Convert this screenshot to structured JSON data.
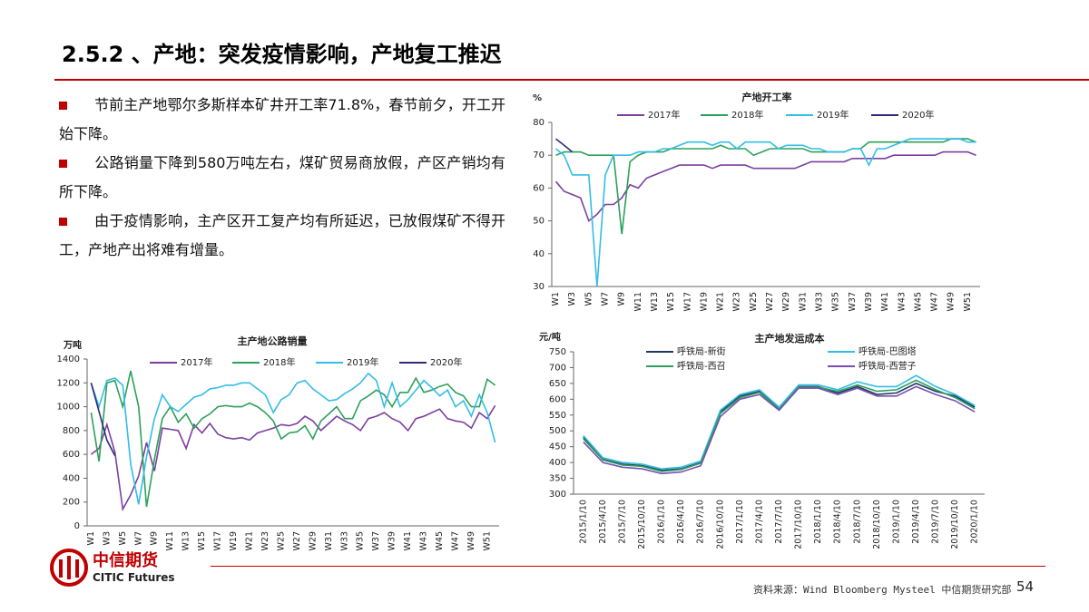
{
  "header": {
    "title": "2.5.2 、产地：突发疫情影响，产地复工推迟"
  },
  "bullets": [
    "节前主产地鄂尔多斯样本矿井开工率71.8%，春节前夕，开工开始下降。",
    "公路销量下降到580万吨左右，煤矿贸易商放假，产区产销均有所下降。",
    "由于疫情影响，主产区开工复产均有所延迟，已放假煤矿不得开工，产地产出将难有增量。"
  ],
  "logo": {
    "name": "中信期货",
    "name_en": "CITIC Futures"
  },
  "footer": {
    "source": "资料来源：Wind Bloomberg Mysteel 中信期货研究部",
    "page": "54"
  },
  "chart_data": [
    {
      "type": "line",
      "title": "产地开工率",
      "y_label": "%",
      "legend": "top",
      "ylim": [
        30,
        80
      ],
      "yticks": [
        30,
        40,
        50,
        60,
        70,
        80
      ],
      "categories": [
        "W1",
        null,
        "W3",
        null,
        "W5",
        null,
        "W7",
        null,
        "W9",
        null,
        "W11",
        null,
        "W13",
        null,
        "W15",
        null,
        "W17",
        null,
        "W19",
        null,
        "W21",
        null,
        "W23",
        null,
        "W25",
        null,
        "W27",
        null,
        "W29",
        null,
        "W31",
        null,
        "W33",
        null,
        "W35",
        null,
        "W37",
        null,
        "W39",
        null,
        "W41",
        null,
        "W43",
        null,
        "W45",
        null,
        "W47",
        null,
        "W49",
        null,
        "W51",
        null
      ],
      "series": [
        {
          "name": "2017年",
          "color": "#7b3fa0",
          "values": [
            62,
            59,
            58,
            57,
            50,
            52,
            55,
            55,
            57,
            61,
            60,
            63,
            64,
            65,
            66,
            67,
            67,
            67,
            67,
            66,
            67,
            67,
            67,
            67,
            66,
            66,
            66,
            66,
            66,
            66,
            67,
            68,
            68,
            68,
            68,
            68,
            69,
            69,
            69,
            69,
            69,
            70,
            70,
            70,
            70,
            70,
            70,
            71,
            71,
            71,
            71,
            70
          ]
        },
        {
          "name": "2018年",
          "color": "#2ca05a",
          "values": [
            70,
            71,
            71,
            71,
            70,
            70,
            70,
            70,
            46,
            68,
            70,
            71,
            71,
            71,
            72,
            72,
            72,
            72,
            72,
            72,
            73,
            72,
            72,
            72,
            70,
            71,
            72,
            72,
            72,
            72,
            72,
            71,
            71,
            71,
            71,
            71,
            72,
            72,
            74,
            74,
            74,
            74,
            74,
            74,
            74,
            74,
            74,
            74,
            75,
            75,
            75,
            74
          ]
        },
        {
          "name": "2019年",
          "color": "#33bde6",
          "values": [
            72,
            70,
            64,
            64,
            64,
            30,
            64,
            70,
            70,
            70,
            71,
            71,
            71,
            72,
            72,
            73,
            74,
            74,
            74,
            73,
            74,
            74,
            72,
            74,
            74,
            74,
            74,
            72,
            73,
            73,
            73,
            72,
            72,
            71,
            71,
            71,
            72,
            72,
            67,
            72,
            72,
            73,
            74,
            75,
            75,
            75,
            75,
            75,
            75,
            75,
            74,
            74
          ]
        },
        {
          "name": "2020年",
          "color": "#2e2a7a",
          "values": [
            75,
            73,
            71,
            null,
            null,
            null,
            null,
            null,
            null,
            null,
            null,
            null,
            null,
            null,
            null,
            null,
            null,
            null,
            null,
            null,
            null,
            null,
            null,
            null,
            null,
            null,
            null,
            null,
            null,
            null,
            null,
            null,
            null,
            null,
            null,
            null,
            null,
            null,
            null,
            null,
            null,
            null,
            null,
            null,
            null,
            null,
            null,
            null,
            null,
            null,
            null,
            null
          ]
        }
      ]
    },
    {
      "type": "line",
      "title": "主产地公路销量",
      "y_label": "万吨",
      "legend": "top",
      "ylim": [
        0,
        1400
      ],
      "yticks": [
        0,
        200,
        400,
        600,
        800,
        1000,
        1200,
        1400
      ],
      "categories": [
        "W1",
        null,
        "W3",
        null,
        "W5",
        null,
        "W7",
        null,
        "W9",
        null,
        "W11",
        null,
        "W13",
        null,
        "W15",
        null,
        "W17",
        null,
        "W19",
        null,
        "W21",
        null,
        "W23",
        null,
        "W25",
        null,
        "W27",
        null,
        "W29",
        null,
        "W31",
        null,
        "W33",
        null,
        "W35",
        null,
        "W37",
        null,
        "W39",
        null,
        "W41",
        null,
        "W43",
        null,
        "W45",
        null,
        "W47",
        null,
        "W49",
        null,
        "W51",
        null
      ],
      "series": [
        {
          "name": "2017年",
          "color": "#7b3fa0",
          "values": [
            600,
            650,
            850,
            620,
            140,
            260,
            420,
            700,
            460,
            820,
            810,
            800,
            650,
            850,
            780,
            860,
            770,
            740,
            730,
            740,
            720,
            780,
            800,
            820,
            850,
            840,
            860,
            920,
            880,
            800,
            860,
            920,
            880,
            850,
            800,
            900,
            920,
            950,
            900,
            870,
            800,
            900,
            920,
            950,
            980,
            900,
            880,
            870,
            820,
            950,
            900,
            1010
          ]
        },
        {
          "name": "2018年",
          "color": "#2ca05a",
          "values": [
            950,
            540,
            1200,
            1220,
            1000,
            1300,
            1000,
            160,
            560,
            900,
            1000,
            870,
            940,
            820,
            900,
            940,
            1000,
            1010,
            1000,
            1000,
            1030,
            1000,
            950,
            880,
            730,
            780,
            790,
            840,
            730,
            880,
            940,
            1000,
            900,
            900,
            1050,
            1090,
            1140,
            1100,
            1000,
            1120,
            1120,
            1240,
            1120,
            1140,
            1170,
            1190,
            1120,
            1090,
            1000,
            1000,
            1230,
            1180
          ]
        },
        {
          "name": "2019年",
          "color": "#33bde6",
          "values": [
            1200,
            1000,
            1220,
            1240,
            1180,
            520,
            180,
            580,
            900,
            1100,
            1000,
            960,
            1020,
            1080,
            1100,
            1150,
            1160,
            1180,
            1180,
            1200,
            1200,
            1150,
            1100,
            950,
            1060,
            1100,
            1200,
            1220,
            1150,
            1100,
            1050,
            1060,
            1110,
            1150,
            1200,
            1280,
            1220,
            1000,
            1200,
            1000,
            1060,
            1140,
            1220,
            1160,
            1090,
            1140,
            1000,
            1050,
            920,
            1100,
            950,
            700
          ]
        },
        {
          "name": "2020年",
          "color": "#2e2a7a",
          "values": [
            1200,
            960,
            720,
            590,
            null,
            null,
            null,
            null,
            null,
            null,
            null,
            null,
            null,
            null,
            null,
            null,
            null,
            null,
            null,
            null,
            null,
            null,
            null,
            null,
            null,
            null,
            null,
            null,
            null,
            null,
            null,
            null,
            null,
            null,
            null,
            null,
            null,
            null,
            null,
            null,
            null,
            null,
            null,
            null,
            null,
            null,
            null,
            null,
            null,
            null,
            null,
            null
          ]
        }
      ]
    },
    {
      "type": "line",
      "title": "主产地发运成本",
      "y_label": "元/吨",
      "legend": "top",
      "ylim": [
        300,
        750
      ],
      "yticks": [
        300,
        350,
        400,
        450,
        500,
        550,
        600,
        650,
        700,
        750
      ],
      "categories": [
        "2015/1/10",
        "2015/4/10",
        "2015/7/10",
        "2015/10/10",
        "2016/1/10",
        "2016/4/10",
        "2016/7/10",
        "2016/10/10",
        "2017/1/10",
        "2017/4/10",
        "2017/7/10",
        "2017/10/10",
        "2018/1/10",
        "2018/4/10",
        "2018/7/10",
        "2018/10/10",
        "2019/1/10",
        "2019/4/10",
        "2019/7/10",
        "2019/10/10",
        "2020/1/10"
      ],
      "series": [
        {
          "name": "呼铁局-新街",
          "color": "#1f3864",
          "values": [
            480,
            410,
            395,
            390,
            375,
            380,
            400,
            560,
            610,
            625,
            570,
            640,
            640,
            620,
            640,
            615,
            620,
            650,
            625,
            610,
            575
          ]
        },
        {
          "name": "呼铁局-巴图塔",
          "color": "#33bde6",
          "values": [
            485,
            415,
            400,
            395,
            380,
            385,
            405,
            565,
            615,
            630,
            575,
            645,
            645,
            630,
            655,
            640,
            640,
            675,
            640,
            615,
            580
          ]
        },
        {
          "name": "呼铁局-西召",
          "color": "#2ca05a",
          "values": [
            475,
            408,
            392,
            388,
            372,
            378,
            398,
            555,
            605,
            622,
            568,
            638,
            638,
            625,
            645,
            625,
            630,
            660,
            630,
            605,
            570
          ]
        },
        {
          "name": "呼铁局-西营子",
          "color": "#7b4fb0",
          "values": [
            465,
            400,
            385,
            380,
            365,
            370,
            390,
            545,
            600,
            615,
            565,
            635,
            635,
            615,
            635,
            610,
            610,
            640,
            615,
            595,
            560
          ]
        }
      ]
    }
  ]
}
